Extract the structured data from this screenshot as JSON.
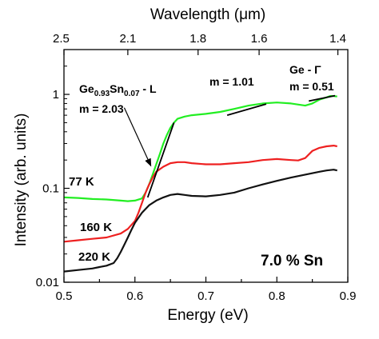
{
  "chart_data": {
    "type": "line",
    "title": "",
    "xlabel": "Energy (eV)",
    "ylabel": "Intensity (arb. units)",
    "top_axis_label": "Wavelength (μm)",
    "xlim": [
      0.5,
      0.9
    ],
    "ylim": [
      0.01,
      3
    ],
    "y_scale": "log",
    "x_ticks": [
      "0.5",
      "0.6",
      "0.7",
      "0.8",
      "0.9"
    ],
    "y_ticks": [
      "0.01",
      "0.1",
      "1"
    ],
    "top_ticks": [
      {
        "label": "2.5",
        "energy": 0.496
      },
      {
        "label": "2.1",
        "energy": 0.59
      },
      {
        "label": "1.8",
        "energy": 0.689
      },
      {
        "label": "1.6",
        "energy": 0.775
      },
      {
        "label": "1.4",
        "energy": 0.886
      }
    ],
    "series": [
      {
        "name": "77 K",
        "color": "#22ee22",
        "x": [
          0.5,
          0.52,
          0.54,
          0.56,
          0.58,
          0.59,
          0.6,
          0.61,
          0.615,
          0.62,
          0.625,
          0.63,
          0.635,
          0.64,
          0.645,
          0.65,
          0.655,
          0.66,
          0.67,
          0.68,
          0.7,
          0.72,
          0.74,
          0.76,
          0.78,
          0.8,
          0.82,
          0.84,
          0.85,
          0.86,
          0.87,
          0.875,
          0.88,
          0.885
        ],
        "y": [
          0.08,
          0.079,
          0.077,
          0.076,
          0.074,
          0.073,
          0.074,
          0.078,
          0.09,
          0.11,
          0.14,
          0.18,
          0.23,
          0.3,
          0.37,
          0.44,
          0.5,
          0.55,
          0.58,
          0.6,
          0.62,
          0.65,
          0.7,
          0.76,
          0.8,
          0.82,
          0.8,
          0.76,
          0.8,
          0.88,
          0.93,
          0.96,
          0.96,
          0.95
        ]
      },
      {
        "name": "160 K",
        "color": "#ee2020",
        "x": [
          0.5,
          0.52,
          0.54,
          0.56,
          0.58,
          0.59,
          0.6,
          0.605,
          0.61,
          0.615,
          0.62,
          0.625,
          0.63,
          0.64,
          0.65,
          0.66,
          0.67,
          0.68,
          0.7,
          0.72,
          0.74,
          0.76,
          0.78,
          0.8,
          0.82,
          0.83,
          0.84,
          0.85,
          0.86,
          0.87,
          0.88,
          0.885
        ],
        "y": [
          0.027,
          0.028,
          0.029,
          0.03,
          0.033,
          0.037,
          0.045,
          0.055,
          0.07,
          0.09,
          0.11,
          0.13,
          0.15,
          0.17,
          0.185,
          0.19,
          0.19,
          0.185,
          0.18,
          0.18,
          0.185,
          0.19,
          0.2,
          0.205,
          0.2,
          0.198,
          0.21,
          0.25,
          0.27,
          0.28,
          0.285,
          0.28
        ]
      },
      {
        "name": "220 K",
        "color": "#111111",
        "x": [
          0.5,
          0.52,
          0.54,
          0.55,
          0.56,
          0.57,
          0.575,
          0.58,
          0.585,
          0.59,
          0.595,
          0.6,
          0.61,
          0.62,
          0.63,
          0.64,
          0.65,
          0.66,
          0.67,
          0.68,
          0.7,
          0.72,
          0.74,
          0.76,
          0.78,
          0.8,
          0.82,
          0.84,
          0.86,
          0.87,
          0.88,
          0.885
        ],
        "y": [
          0.013,
          0.0135,
          0.014,
          0.0145,
          0.015,
          0.016,
          0.018,
          0.021,
          0.025,
          0.03,
          0.036,
          0.043,
          0.055,
          0.066,
          0.074,
          0.08,
          0.085,
          0.087,
          0.085,
          0.083,
          0.082,
          0.085,
          0.09,
          0.1,
          0.11,
          0.12,
          0.13,
          0.14,
          0.15,
          0.155,
          0.158,
          0.155
        ]
      }
    ],
    "fits": [
      {
        "label": "m = 2.03",
        "x": [
          0.618,
          0.655
        ],
        "y": [
          0.08,
          0.5
        ]
      },
      {
        "label": "m = 1.01",
        "x": [
          0.73,
          0.785
        ],
        "y": [
          0.6,
          0.79
        ]
      },
      {
        "label": "m = 0.51",
        "x": [
          0.845,
          0.882
        ],
        "y": [
          0.85,
          0.97
        ]
      }
    ],
    "annotations": {
      "material_base": "Ge",
      "material_sub1": "0.93",
      "material_mid": "Sn",
      "material_sub2": "0.07",
      "material_tail": " - L",
      "slope_l": "m = 2.03",
      "slope_mid": "m = 1.01",
      "ge_gamma_prefix": "Ge - ",
      "ge_gamma_symbol": "Γ",
      "slope_gamma": "m = 0.51",
      "composition": "7.0 % Sn",
      "arrow_from": {
        "x": 0.585,
        "y": 0.72
      },
      "arrow_to": {
        "x": 0.623,
        "y": 0.17
      }
    },
    "grid": false,
    "legend": "none"
  }
}
